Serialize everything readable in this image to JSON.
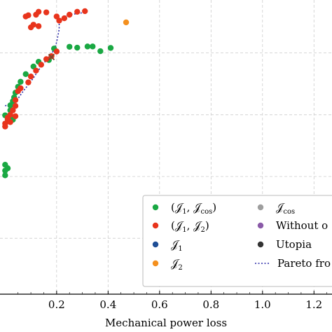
{
  "chart_data": {
    "type": "scatter",
    "xlabel": "Mechanical power loss",
    "ylabel": "",
    "xlim": [
      -0.02,
      1.27
    ],
    "x_ticks": [
      "0.2",
      "0.4",
      "0.6",
      "0.8",
      "1.0",
      "1.2"
    ],
    "x_tick_values": [
      0.2,
      0.4,
      0.6,
      0.8,
      1.0,
      1.2
    ],
    "ylim": [
      0,
      1
    ],
    "y_gridlines": [
      0.19,
      0.4,
      0.61,
      0.82
    ],
    "grid": true,
    "grid_style": "dashed",
    "legend_position": "lower-right",
    "legend_columns": 2,
    "legend": [
      {
        "label": "(𝒥1, 𝒥cos)",
        "main": "(𝒥",
        "sub1": "1",
        "mid": ", 𝒥",
        "sub2": "cos",
        "end": ")",
        "color": "#1aa843",
        "marker": "dot"
      },
      {
        "label": "(𝒥1, 𝒥2)",
        "main": "(𝒥",
        "sub1": "1",
        "mid": ", 𝒥",
        "sub2": "2",
        "end": ")",
        "color": "#e8341c",
        "marker": "dot"
      },
      {
        "label": "𝒥1",
        "main": "𝒥",
        "sub1": "1",
        "mid": "",
        "sub2": "",
        "end": "",
        "color": "#1f4e96",
        "marker": "dot"
      },
      {
        "label": "𝒥2",
        "main": "𝒥",
        "sub1": "2",
        "mid": "",
        "sub2": "",
        "end": "",
        "color": "#f4901e",
        "marker": "dot"
      },
      {
        "label": "𝒥cos",
        "main": "𝒥",
        "sub1": "cos",
        "mid": "",
        "sub2": "",
        "end": "",
        "color": "#9e9e9e",
        "marker": "dot"
      },
      {
        "label": "Without o",
        "main": "Without o",
        "sub1": "",
        "mid": "",
        "sub2": "",
        "end": "",
        "color": "#8a5aa8",
        "marker": "dot"
      },
      {
        "label": "Utopia",
        "main": "Utopia",
        "sub1": "",
        "mid": "",
        "sub2": "",
        "end": "",
        "color": "#333333",
        "marker": "dot"
      },
      {
        "label": "Pareto fro",
        "main": "Pareto fro",
        "sub1": "",
        "mid": "",
        "sub2": "",
        "end": "",
        "color": "#2a2aa8",
        "marker": "dotted-line"
      }
    ],
    "series": [
      {
        "name": "(𝒥1, 𝒥cos)",
        "color": "#1aa843",
        "points": [
          [
            0.19,
            0.835
          ],
          [
            0.25,
            0.841
          ],
          [
            0.28,
            0.838
          ],
          [
            0.32,
            0.842
          ],
          [
            0.34,
            0.842
          ],
          [
            0.37,
            0.826
          ],
          [
            0.41,
            0.837
          ],
          [
            0.17,
            0.796
          ],
          [
            0.13,
            0.79
          ],
          [
            0.11,
            0.774
          ],
          [
            0.08,
            0.748
          ],
          [
            0.06,
            0.722
          ],
          [
            0.05,
            0.705
          ],
          [
            0.04,
            0.685
          ],
          [
            0.035,
            0.669
          ],
          [
            0.03,
            0.656
          ],
          [
            0.02,
            0.642
          ],
          [
            0.02,
            0.625
          ],
          [
            0.02,
            0.607
          ],
          [
            0.01,
            0.594
          ],
          [
            0.0,
            0.608
          ],
          [
            0.03,
            0.593
          ],
          [
            0.0,
            0.44
          ],
          [
            0.01,
            0.428
          ],
          [
            0.0,
            0.42
          ],
          [
            0.0,
            0.404
          ]
        ]
      },
      {
        "name": "(𝒥1, 𝒥2)",
        "color": "#e8341c",
        "points": [
          [
            0.08,
            0.944
          ],
          [
            0.09,
            0.948
          ],
          [
            0.12,
            0.95
          ],
          [
            0.13,
            0.96
          ],
          [
            0.16,
            0.958
          ],
          [
            0.2,
            0.944
          ],
          [
            0.21,
            0.93
          ],
          [
            0.23,
            0.938
          ],
          [
            0.25,
            0.95
          ],
          [
            0.28,
            0.96
          ],
          [
            0.31,
            0.962
          ],
          [
            0.11,
            0.916
          ],
          [
            0.1,
            0.907
          ],
          [
            0.13,
            0.911
          ],
          [
            0.2,
            0.825
          ],
          [
            0.18,
            0.809
          ],
          [
            0.16,
            0.799
          ],
          [
            0.14,
            0.78
          ],
          [
            0.12,
            0.76
          ],
          [
            0.1,
            0.74
          ],
          [
            0.09,
            0.72
          ],
          [
            0.06,
            0.7
          ],
          [
            0.05,
            0.69
          ],
          [
            0.04,
            0.66
          ],
          [
            0.04,
            0.64
          ],
          [
            0.03,
            0.625
          ],
          [
            0.02,
            0.61
          ],
          [
            0.01,
            0.595
          ],
          [
            0.0,
            0.58
          ],
          [
            0.02,
            0.585
          ],
          [
            0.0,
            0.57
          ],
          [
            0.01,
            0.6
          ],
          [
            0.04,
            0.605
          ]
        ]
      },
      {
        "name": "𝒥2",
        "color": "#f4901e",
        "points": [
          [
            0.47,
            0.924
          ]
        ]
      },
      {
        "name": "Utopia",
        "color": "#333333",
        "points": [
          [
            0.18,
            0.806
          ]
        ]
      }
    ],
    "pareto_front": {
      "name": "Pareto front",
      "color": "#2a2aa8",
      "points": [
        [
          0.0,
          0.64
        ],
        [
          0.02,
          0.648
        ],
        [
          0.05,
          0.665
        ],
        [
          0.07,
          0.69
        ],
        [
          0.09,
          0.712
        ],
        [
          0.11,
          0.735
        ],
        [
          0.13,
          0.762
        ],
        [
          0.15,
          0.785
        ],
        [
          0.17,
          0.806
        ],
        [
          0.19,
          0.83
        ],
        [
          0.2,
          0.856
        ],
        [
          0.21,
          0.9
        ],
        [
          0.21,
          0.935
        ],
        [
          0.25,
          0.95
        ],
        [
          0.29,
          0.955
        ],
        [
          0.31,
          0.958
        ]
      ]
    }
  }
}
